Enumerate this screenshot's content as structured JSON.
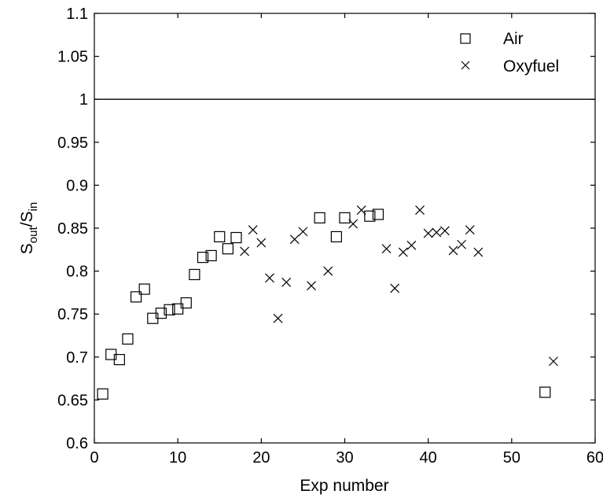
{
  "chart_data": {
    "type": "scatter",
    "title": "",
    "xlabel": "Exp number",
    "ylabel": {
      "main": "S",
      "sub1": "out",
      "sep": "/S",
      "sub2": "in"
    },
    "xlim": [
      0,
      60
    ],
    "ylim": [
      0.6,
      1.1
    ],
    "xticks": [
      0,
      10,
      20,
      30,
      40,
      50,
      60
    ],
    "yticks": [
      0.6,
      0.65,
      0.7,
      0.75,
      0.8,
      0.85,
      0.9,
      0.95,
      1,
      1.05,
      1.1
    ],
    "xtick_labels": [
      "0",
      "10",
      "20",
      "30",
      "40",
      "50",
      "60"
    ],
    "ytick_labels": [
      "0.6",
      "0.65",
      "0.7",
      "0.75",
      "0.8",
      "0.85",
      "0.9",
      "0.95",
      "1",
      "1.05",
      "1.1"
    ],
    "grid": false,
    "legend_position": "top-right",
    "reference_line": {
      "y": 1
    },
    "series": [
      {
        "name": "Air",
        "marker": "square",
        "color": "#000000",
        "points": [
          [
            1,
            0.657
          ],
          [
            2,
            0.703
          ],
          [
            3,
            0.697
          ],
          [
            4,
            0.721
          ],
          [
            5,
            0.77
          ],
          [
            6,
            0.779
          ],
          [
            7,
            0.745
          ],
          [
            8,
            0.751
          ],
          [
            9,
            0.755
          ],
          [
            10,
            0.756
          ],
          [
            11,
            0.763
          ],
          [
            12,
            0.796
          ],
          [
            13,
            0.816
          ],
          [
            14,
            0.818
          ],
          [
            15,
            0.84
          ],
          [
            16,
            0.826
          ],
          [
            17,
            0.839
          ],
          [
            27,
            0.862
          ],
          [
            29,
            0.84
          ],
          [
            30,
            0.862
          ],
          [
            33,
            0.864
          ],
          [
            34,
            0.866
          ],
          [
            54,
            0.659
          ]
        ]
      },
      {
        "name": "Oxyfuel",
        "marker": "x",
        "color": "#000000",
        "points": [
          [
            18,
            0.823
          ],
          [
            19,
            0.848
          ],
          [
            20,
            0.833
          ],
          [
            21,
            0.792
          ],
          [
            22,
            0.745
          ],
          [
            23,
            0.787
          ],
          [
            24,
            0.837
          ],
          [
            25,
            0.846
          ],
          [
            26,
            0.783
          ],
          [
            28,
            0.8
          ],
          [
            31,
            0.855
          ],
          [
            32,
            0.871
          ],
          [
            35,
            0.826
          ],
          [
            36,
            0.78
          ],
          [
            37,
            0.822
          ],
          [
            38,
            0.83
          ],
          [
            39,
            0.871
          ],
          [
            40,
            0.844
          ],
          [
            41,
            0.845
          ],
          [
            42,
            0.847
          ],
          [
            43,
            0.824
          ],
          [
            44,
            0.831
          ],
          [
            45,
            0.848
          ],
          [
            46,
            0.822
          ],
          [
            55,
            0.695
          ]
        ]
      }
    ]
  }
}
